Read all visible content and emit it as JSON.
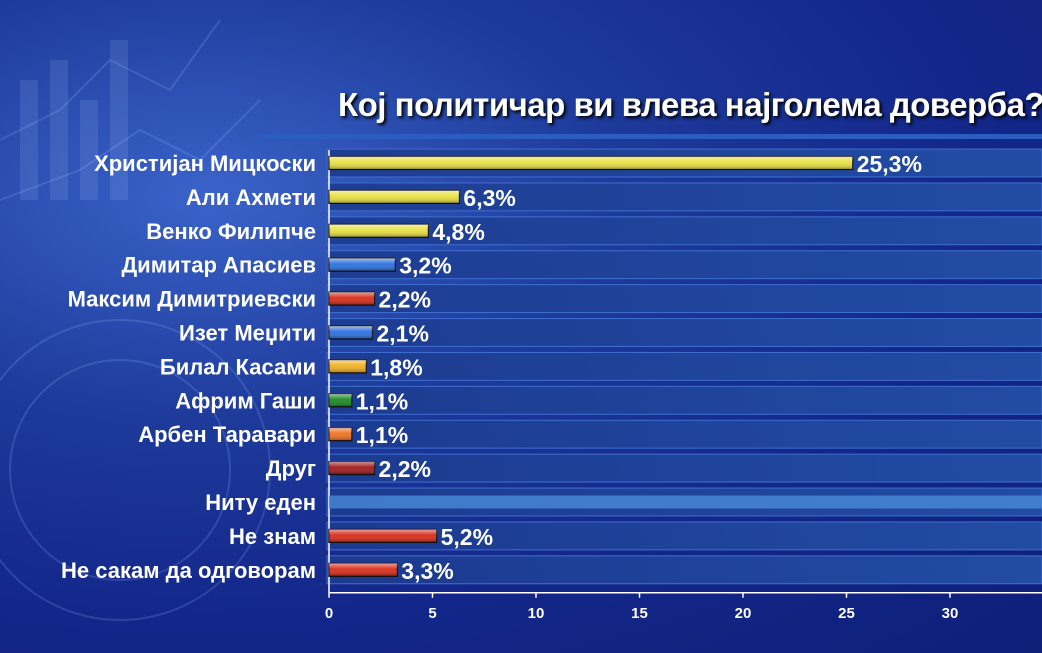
{
  "chart_data": {
    "type": "bar",
    "orientation": "horizontal",
    "title": "Кој политичар ви влева најголема доверба?",
    "categories": [
      "Христијан Мицкоски",
      "Али Ахмети",
      "Венко Филипче",
      "Димитар Апасиев",
      "Максим Димитриевски",
      "Изет Меџити",
      "Билал Касами",
      "Африм Гаши",
      "Арбен Таравари",
      "Друг",
      "Ниту еден",
      "Не знам",
      "Не сакам да одговорам"
    ],
    "values": [
      25.3,
      6.3,
      4.8,
      3.2,
      2.2,
      2.1,
      1.8,
      1.1,
      1.1,
      2.2,
      null,
      5.2,
      3.3
    ],
    "value_labels": [
      "25,3%",
      "6,3%",
      "4,8%",
      "3,2%",
      "2,2%",
      "2,1%",
      "1,8%",
      "1,1%",
      "1,1%",
      "2,2%",
      "",
      "5,2%",
      "3,3%"
    ],
    "colors": [
      "#e8e040",
      "#e8e040",
      "#e8e040",
      "#2a6fe0",
      "#d82a18",
      "#2a6fe0",
      "#f0b020",
      "#1a8a22",
      "#f07020",
      "#a01818",
      "#4a8ad8",
      "#d82a18",
      "#d82a18"
    ],
    "xticks": [
      "0",
      "5",
      "10",
      "15",
      "20",
      "25",
      "30"
    ],
    "xlim": [
      0,
      33
    ],
    "xlabel": "",
    "ylabel": "",
    "grid": true,
    "legend": "none"
  }
}
